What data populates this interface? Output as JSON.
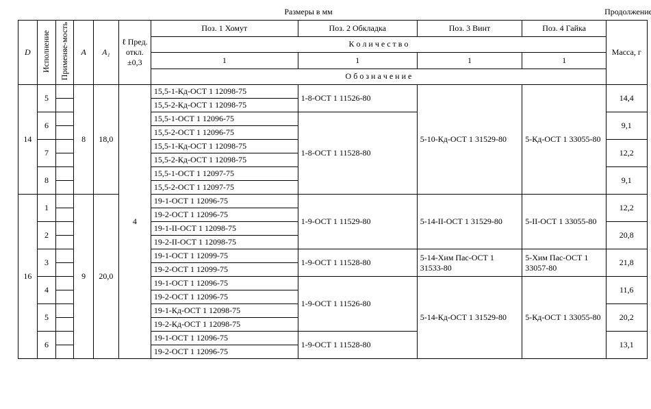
{
  "labels": {
    "top_center": "Размеры в мм",
    "top_right": "Продолжение",
    "D": "D",
    "ispolnenie": "Исполнение",
    "primenyaemost": "Применяе-мость",
    "A": "A",
    "A1": "A₁",
    "L_header": "ℓ Пред. откл. ±0,3",
    "poz1": "Поз. 1 Хомут",
    "poz2": "Поз. 2 Обкладка",
    "poz3": "Поз. 3 Винт",
    "poz4": "Поз. 4 Гайка",
    "kolichestvo": "К о л и ч е с т в о",
    "oboznachenie": "О б о з н а ч е н и е",
    "massa": "Масса, г",
    "qty1": "1",
    "qty2": "1",
    "qty3": "1",
    "qty4": "1"
  },
  "groups": [
    {
      "D": "14",
      "A": "8",
      "A1": "18,0",
      "L": "4",
      "rows": [
        {
          "isp": "5",
          "p1a": "15,5-1-Кд-ОСТ 1 12098-75",
          "p1b": "15,5-2-Кд-ОСТ 1 12098-75",
          "p2": "1-8-ОСТ 1 11526-80",
          "p3": "5-10-Кд-ОСТ 1 31529-80",
          "p4": "5-Кд-ОСТ 1 33055-80",
          "mass": "14,4",
          "p2span": 2,
          "p3span": 8,
          "p4span": 8
        },
        {
          "isp": "6",
          "p1a": "15,5-1-ОСТ 1 12096-75",
          "p1b": "15,5-2-ОСТ 1 12096-75",
          "p2": "1-8-ОСТ 1 11528-80",
          "mass": "9,1",
          "p2span": 6
        },
        {
          "isp": "7",
          "p1a": "15,5-1-Кд-ОСТ 1 12098-75",
          "p1b": "15,5-2-Кд-ОСТ 1 12098-75",
          "mass": "12,2"
        },
        {
          "isp": "8",
          "p1a": "15,5-1-ОСТ 1 12097-75",
          "p1b": "15,5-2-ОСТ 1 12097-75",
          "mass": "9,1"
        }
      ]
    },
    {
      "D": "16",
      "A": "9",
      "A1": "20,0",
      "rows": [
        {
          "isp": "1",
          "p1a": "19-1-ОСТ 1 12096-75",
          "p1b": "19-2-ОСТ 1 12096-75",
          "p2": "1-9-ОСТ 1 11529-80",
          "p3": "5-14-II-ОСТ 1 31529-80",
          "p4": "5-II-ОСТ 1 33055-80",
          "mass": "12,2",
          "p2span": 4,
          "p3span": 4,
          "p4span": 4
        },
        {
          "isp": "2",
          "p1a": "19-1-II-ОСТ 1 12098-75",
          "p1b": "19-2-II-ОСТ 1 12098-75",
          "mass": "20,8"
        },
        {
          "isp": "3",
          "p1a": "19-1-ОСТ 1 12099-75",
          "p1b": "19-2-ОСТ 1 12099-75",
          "p2": "1-9-ОСТ 1 11528-80",
          "p3": "5-14-Хим Пас-ОСТ 1 31533-80",
          "p4": "5-Хим Пас-ОСТ 1 33057-80",
          "mass": "21,8",
          "p2span": 2,
          "p3span": 2,
          "p4span": 2
        },
        {
          "isp": "4",
          "p1a": "19-1-ОСТ 1 12096-75",
          "p1b": "19-2-ОСТ 1 12096-75",
          "p2": "1-9-ОСТ 1 11526-80",
          "p3": "5-14-Кд-ОСТ 1 31529-80",
          "p4": "5-Кд-ОСТ 1 33055-80",
          "mass": "11,6",
          "p2span": 4,
          "p3span": 6,
          "p4span": 6
        },
        {
          "isp": "5",
          "p1a": "19-1-Кд-ОСТ 1 12098-75",
          "p1b": "19-2-Кд-ОСТ 1 12098-75",
          "mass": "20,2"
        },
        {
          "isp": "6",
          "p1a": "19-1-ОСТ 1 12096-75",
          "p1b": "19-2-ОСТ 1 12096-75",
          "p2": "1-9-ОСТ 1 11528-80",
          "mass": "13,1",
          "p2span": 2
        }
      ]
    }
  ]
}
